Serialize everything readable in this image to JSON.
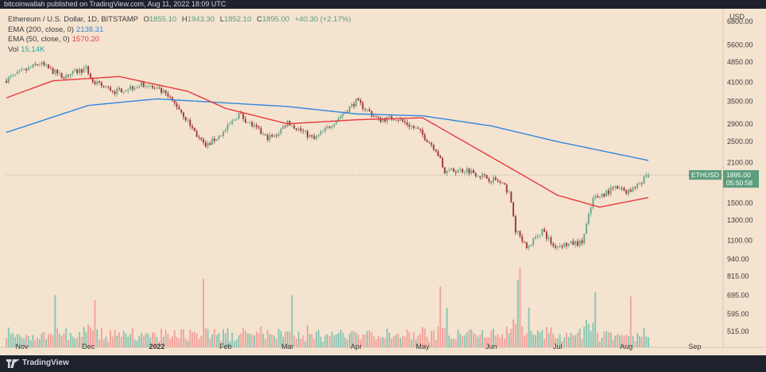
{
  "header": {
    "credit": "bitcoinwallah published on TradingView.com, Aug 11, 2022 18:09 UTC"
  },
  "legend": {
    "symbol": "Ethereum / U.S. Dollar, 1D, BITSTAMP",
    "ohlc": {
      "o_label": "O",
      "o": "1855.10",
      "h_label": "H",
      "h": "1943.30",
      "l_label": "L",
      "l": "1852.10",
      "c_label": "C",
      "c": "1895.00",
      "change": "+40.30 (+2.17%)"
    },
    "ema200": {
      "label": "EMA (200, close, 0)",
      "value": "2138.31",
      "color": "#2f86e0"
    },
    "ema50": {
      "label": "EMA (50, close, 0)",
      "value": "1570.20",
      "color": "#e8383d"
    },
    "vol": {
      "label": "Vol",
      "value": "15.14K",
      "color": "#26a69a"
    }
  },
  "price_tag": {
    "symbol": "ETHUSD",
    "price": "1895.00",
    "countdown": "05:50:58",
    "color": "#5c9e7e"
  },
  "footer": {
    "brand": "TradingView"
  },
  "colors": {
    "up": "#6aa88a",
    "down": "#9e3b34",
    "vol_up": "#8cc6b4",
    "vol_down": "#f2a49c",
    "text": "#3c3c3c",
    "background": "#f4e3cf"
  },
  "chart_data": {
    "type": "candlestick",
    "symbol": "ETHUSD",
    "interval": "1D",
    "currency": "USD",
    "y_axis": {
      "scale": "log",
      "ticks": [
        515,
        595,
        695,
        815,
        940,
        1100,
        1300,
        1500,
        1750,
        2100,
        2500,
        2900,
        3500,
        4100,
        4850,
        5600,
        6800
      ],
      "tick_labels": [
        "515.00",
        "595.00",
        "695.00",
        "815.00",
        "940.00",
        "1100.00",
        "1300.00",
        "1500.00",
        "1750.00",
        "2100.00",
        "2500.00",
        "2900.00",
        "3500.00",
        "4100.00",
        "4850.00",
        "5600.00",
        "6800.00"
      ],
      "unit_label": "USD"
    },
    "x_axis": {
      "range": [
        "2021-10-25",
        "2022-09-13"
      ],
      "tick_dates": [
        "2021-11-01",
        "2021-12-01",
        "2022-01-01",
        "2022-02-01",
        "2022-03-01",
        "2022-04-01",
        "2022-05-01",
        "2022-06-01",
        "2022-07-01",
        "2022-08-01",
        "2022-09-01"
      ],
      "tick_labels": [
        "Nov",
        "Dec",
        "2022",
        "Feb",
        "Mar",
        "Apr",
        "May",
        "Jun",
        "Jul",
        "Aug",
        "Sep"
      ]
    },
    "price_anchors": [
      [
        "2021-10-25",
        4150
      ],
      [
        "2021-11-10",
        4800
      ],
      [
        "2021-11-20",
        4300
      ],
      [
        "2021-12-01",
        4600
      ],
      [
        "2021-12-04",
        4100
      ],
      [
        "2021-12-14",
        3800
      ],
      [
        "2021-12-27",
        4050
      ],
      [
        "2022-01-05",
        3750
      ],
      [
        "2022-01-12",
        3300
      ],
      [
        "2022-01-22",
        2500
      ],
      [
        "2022-01-24",
        2400
      ],
      [
        "2022-02-01",
        2700
      ],
      [
        "2022-02-08",
        3150
      ],
      [
        "2022-02-20",
        2600
      ],
      [
        "2022-02-24",
        2600
      ],
      [
        "2022-03-02",
        2950
      ],
      [
        "2022-03-14",
        2550
      ],
      [
        "2022-03-20",
        2800
      ],
      [
        "2022-04-02",
        3500
      ],
      [
        "2022-04-08",
        3200
      ],
      [
        "2022-04-12",
        3000
      ],
      [
        "2022-04-20",
        3050
      ],
      [
        "2022-04-30",
        2750
      ],
      [
        "2022-05-08",
        2350
      ],
      [
        "2022-05-12",
        1950
      ],
      [
        "2022-05-22",
        1980
      ],
      [
        "2022-05-31",
        1850
      ],
      [
        "2022-06-05",
        1800
      ],
      [
        "2022-06-10",
        1650
      ],
      [
        "2022-06-13",
        1200
      ],
      [
        "2022-06-18",
        1030
      ],
      [
        "2022-06-25",
        1200
      ],
      [
        "2022-06-30",
        1050
      ],
      [
        "2022-07-13",
        1080
      ],
      [
        "2022-07-18",
        1550
      ],
      [
        "2022-07-28",
        1700
      ],
      [
        "2022-08-03",
        1650
      ],
      [
        "2022-08-08",
        1760
      ],
      [
        "2022-08-11",
        1895
      ]
    ],
    "ema200_anchors": [
      [
        "2021-10-25",
        2700
      ],
      [
        "2021-12-01",
        3380
      ],
      [
        "2022-01-01",
        3570
      ],
      [
        "2022-03-01",
        3350
      ],
      [
        "2022-04-01",
        3150
      ],
      [
        "2022-05-01",
        3100
      ],
      [
        "2022-06-01",
        2850
      ],
      [
        "2022-07-01",
        2500
      ],
      [
        "2022-08-11",
        2138.31
      ]
    ],
    "ema50_anchors": [
      [
        "2021-10-25",
        3600
      ],
      [
        "2021-11-15",
        4150
      ],
      [
        "2021-12-15",
        4300
      ],
      [
        "2022-01-15",
        3800
      ],
      [
        "2022-02-01",
        3300
      ],
      [
        "2022-03-01",
        2900
      ],
      [
        "2022-04-01",
        3000
      ],
      [
        "2022-05-01",
        3050
      ],
      [
        "2022-06-01",
        2200
      ],
      [
        "2022-07-01",
        1600
      ],
      [
        "2022-07-20",
        1450
      ],
      [
        "2022-08-11",
        1570.2
      ]
    ],
    "volume_high_days": [
      "2021-11-16",
      "2021-12-04",
      "2022-01-22",
      "2022-03-03",
      "2022-05-09",
      "2022-05-12",
      "2022-06-13",
      "2022-06-14",
      "2022-06-18",
      "2022-07-18",
      "2022-08-03"
    ],
    "last": {
      "open": 1855.1,
      "high": 1943.3,
      "low": 1852.1,
      "close": 1895.0
    }
  }
}
